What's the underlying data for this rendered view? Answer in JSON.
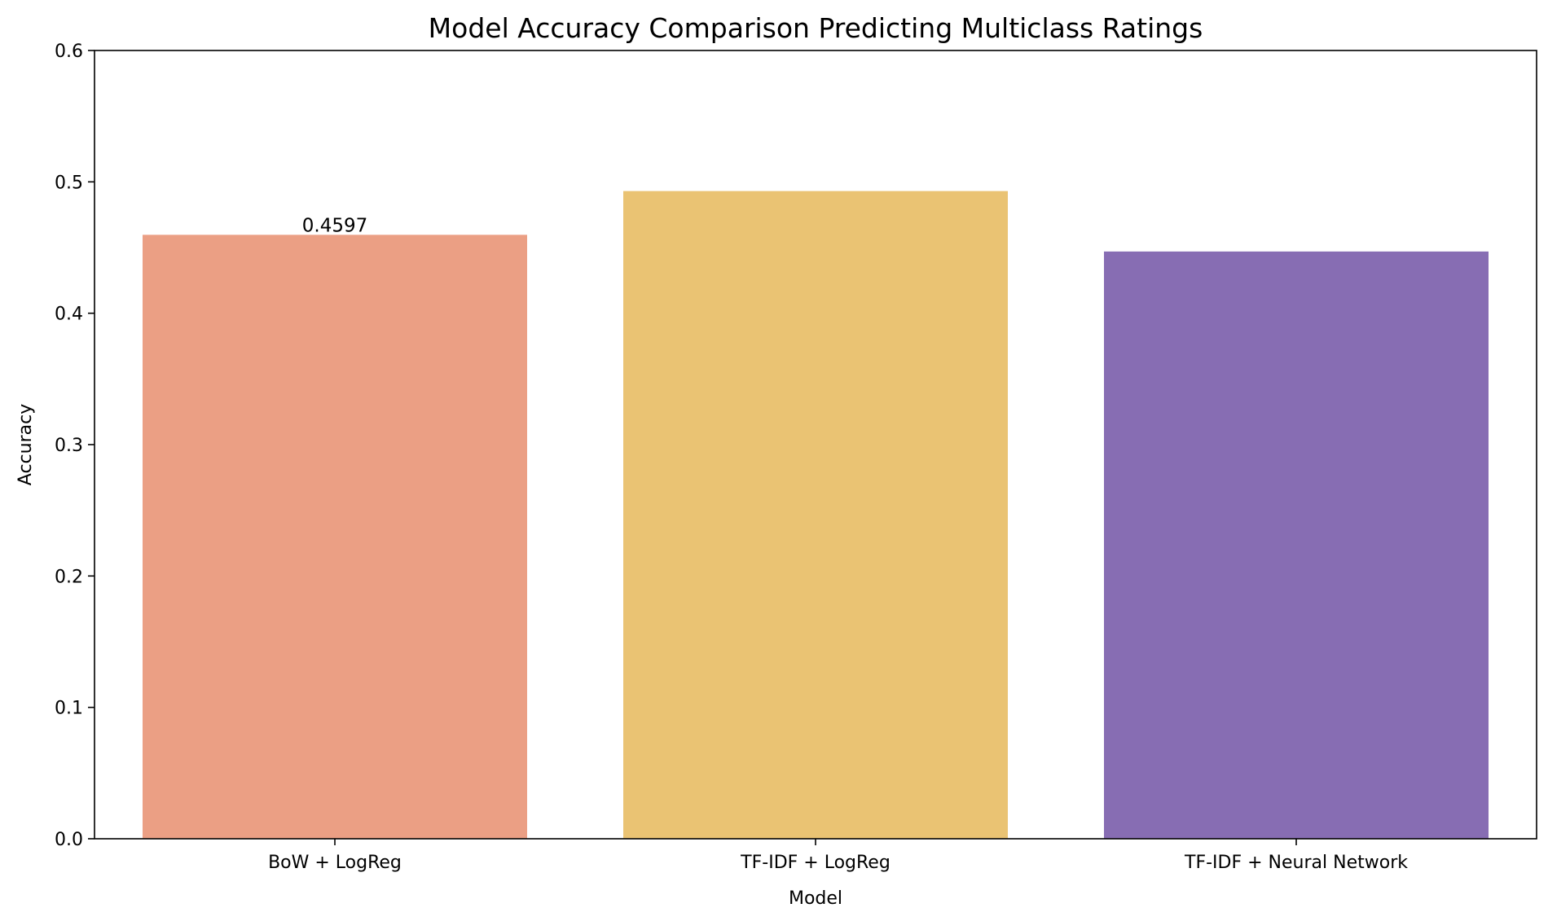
{
  "chart_data": {
    "type": "bar",
    "title": "Model Accuracy Comparison Predicting Multiclass Ratings",
    "xlabel": "Model",
    "ylabel": "Accuracy",
    "categories": [
      "BoW + LogReg",
      "TF-IDF + LogReg",
      "TF-IDF + Neural Network"
    ],
    "values": [
      0.4597,
      0.493,
      0.447
    ],
    "data_labels": [
      "0.4597",
      "",
      ""
    ],
    "colors": [
      "#eb9f84",
      "#eac373",
      "#876db3"
    ],
    "ylim": [
      0,
      0.6
    ],
    "yticks": [
      "0.0",
      "0.1",
      "0.2",
      "0.3",
      "0.4",
      "0.5",
      "0.6"
    ],
    "grid": false,
    "legend": "none"
  }
}
